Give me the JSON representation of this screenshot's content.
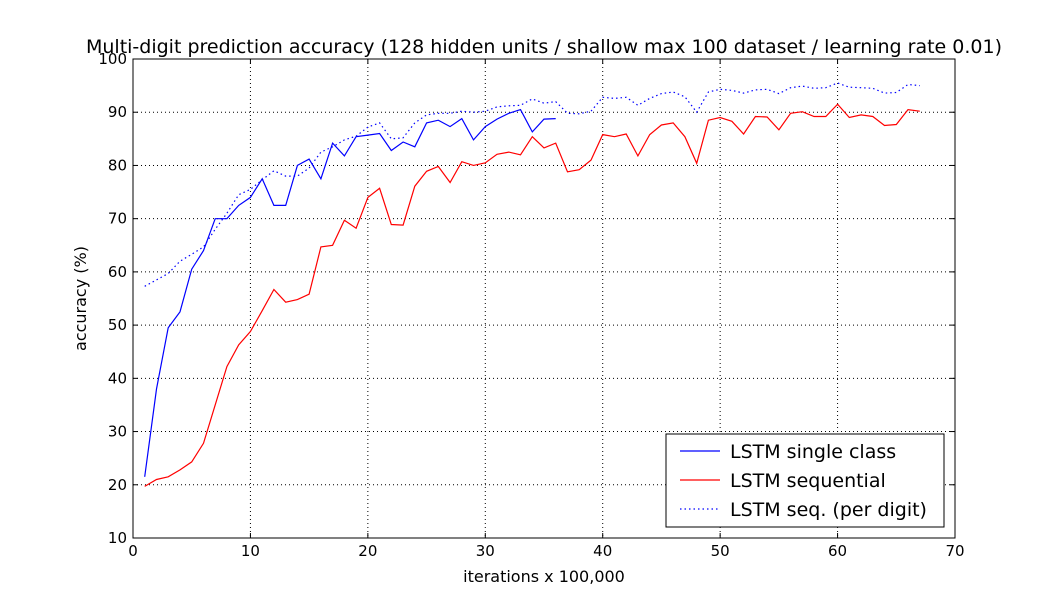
{
  "chart_data": {
    "type": "line",
    "title": "Multi-digit prediction accuracy (128 hidden units / shallow max 100 dataset / learning rate 0.01)",
    "xlabel": "iterations x 100,000",
    "ylabel": "accuracy (%)",
    "xlim": [
      0,
      70
    ],
    "ylim": [
      10,
      100
    ],
    "xticks": [
      0,
      10,
      20,
      30,
      40,
      50,
      60,
      70
    ],
    "yticks": [
      10,
      20,
      30,
      40,
      50,
      60,
      70,
      80,
      90,
      100
    ],
    "grid": true,
    "legend_position": "bottom-right",
    "series": [
      {
        "name": "LSTM single class",
        "color": "#0000ff",
        "style": "solid",
        "x": [
          1,
          2,
          3,
          4,
          5,
          6,
          7,
          8,
          9,
          10,
          11,
          12,
          13,
          14,
          15,
          16,
          17,
          18,
          19,
          20,
          21,
          22,
          23,
          24,
          25,
          26,
          27,
          28,
          29,
          30,
          31,
          32,
          33,
          34,
          35,
          36
        ],
        "y": [
          21.5,
          38,
          49.5,
          52.5,
          60.5,
          64,
          70,
          70,
          72.5,
          74,
          77.5,
          72.5,
          72.5,
          80,
          81.2,
          77.5,
          84.2,
          81.8,
          85.4,
          85.7,
          86,
          82.8,
          84.4,
          83.5,
          88,
          88.5,
          87.3,
          88.8,
          84.8,
          87.3,
          88.7,
          89.8,
          90.5,
          86.3,
          88.7,
          88.8
        ]
      },
      {
        "name": "LSTM sequential",
        "color": "#ff0000",
        "style": "solid",
        "x": [
          1,
          2,
          3,
          4,
          5,
          6,
          7,
          8,
          9,
          10,
          11,
          12,
          13,
          14,
          15,
          16,
          17,
          18,
          19,
          20,
          21,
          22,
          23,
          24,
          25,
          26,
          27,
          28,
          29,
          30,
          31,
          32,
          33,
          34,
          35,
          36,
          37,
          38,
          39,
          40,
          41,
          42,
          43,
          44,
          45,
          46,
          47,
          48,
          49,
          50,
          51,
          52,
          53,
          54,
          55,
          56,
          57,
          58,
          59,
          60,
          61,
          62,
          63,
          64,
          65,
          66,
          67
        ],
        "y": [
          19.7,
          21,
          21.5,
          22.8,
          24.3,
          27.8,
          35,
          42.2,
          46.3,
          48.8,
          52.7,
          56.7,
          54.3,
          54.8,
          55.8,
          64.7,
          65,
          69.7,
          68.2,
          74,
          75.7,
          68.9,
          68.8,
          76.1,
          78.9,
          79.8,
          76.8,
          80.7,
          80,
          80.5,
          82.1,
          82.5,
          82,
          85.4,
          83.3,
          84.2,
          78.8,
          79.2,
          81,
          85.8,
          85.4,
          85.9,
          81.8,
          85.8,
          87.6,
          88,
          85.4,
          80.4,
          88.5,
          89,
          88.3,
          85.9,
          89.2,
          89.1,
          86.7,
          89.8,
          90.1,
          89.2,
          89.2,
          91.5,
          89,
          89.5,
          89.2,
          87.5,
          87.7,
          90.5,
          90.2
        ]
      },
      {
        "name": "LSTM seq. (per digit)",
        "color": "#0000ff",
        "style": "dotted",
        "x": [
          1,
          2,
          3,
          4,
          5,
          6,
          7,
          8,
          9,
          10,
          11,
          12,
          13,
          14,
          15,
          16,
          17,
          18,
          19,
          20,
          21,
          22,
          23,
          24,
          25,
          26,
          27,
          28,
          29,
          30,
          31,
          32,
          33,
          34,
          35,
          36,
          37,
          38,
          39,
          40,
          41,
          42,
          43,
          44,
          45,
          46,
          47,
          48,
          49,
          50,
          51,
          52,
          53,
          54,
          55,
          56,
          57,
          58,
          59,
          60,
          61,
          62,
          63,
          64,
          65,
          66,
          67
        ],
        "y": [
          57.3,
          58.5,
          59.7,
          62,
          63.3,
          64.7,
          68,
          71,
          74.5,
          75.5,
          77.3,
          79,
          78,
          78,
          79.5,
          82.5,
          83.5,
          84.8,
          85.5,
          87.2,
          88,
          85,
          85.2,
          88,
          89.5,
          89.8,
          89.8,
          90.2,
          90,
          90.2,
          91,
          91.2,
          91.3,
          92.5,
          91.7,
          92,
          89.8,
          89.7,
          90.2,
          92.8,
          92.6,
          92.8,
          91.3,
          92.6,
          93.5,
          93.8,
          92.9,
          90,
          93.8,
          94.3,
          94.1,
          93.6,
          94.2,
          94.3,
          93.5,
          94.6,
          94.9,
          94.5,
          94.6,
          95.5,
          94.7,
          94.6,
          94.5,
          93.6,
          93.7,
          95.2,
          95
        ]
      }
    ]
  }
}
